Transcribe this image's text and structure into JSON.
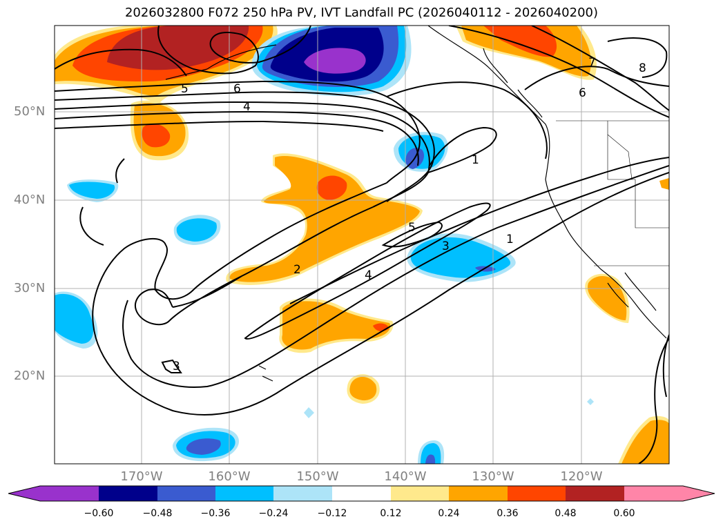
{
  "title": "2026032800 F072 250 hPa PV, IVT Landfall PC (2026040112 - 2026040200)",
  "map": {
    "lat_labels": [
      "50°N",
      "40°N",
      "30°N",
      "20°N"
    ],
    "lon_labels": [
      "170°W",
      "160°W",
      "150°W",
      "140°W",
      "130°W",
      "120°W"
    ],
    "contour_labels": [
      "5",
      "6",
      "4",
      "1",
      "5",
      "3",
      "1",
      "2",
      "4",
      "3",
      "7",
      "8",
      "6"
    ]
  },
  "colorbar": {
    "ticks": [
      "−0.60",
      "−0.48",
      "−0.36",
      "−0.24",
      "−0.12",
      "0.12",
      "0.24",
      "0.36",
      "0.48",
      "0.60"
    ],
    "colors": [
      "#9932cc",
      "#00008b",
      "#3a5bd0",
      "#00bfff",
      "#ade4f8",
      "#ffffff",
      "#ffe98c",
      "#ffa500",
      "#ff4500",
      "#b22222",
      "#ff85a8"
    ]
  },
  "colors": {
    "purple": "#9932cc",
    "navy": "#00008b",
    "blue": "#3a5bd0",
    "sky": "#00bfff",
    "light_sky": "#ade4f8",
    "light_yellow": "#ffe98c",
    "orange": "#ffa500",
    "red_orange": "#ff4500",
    "dark_red": "#b22222",
    "pink": "#ff85a8"
  }
}
